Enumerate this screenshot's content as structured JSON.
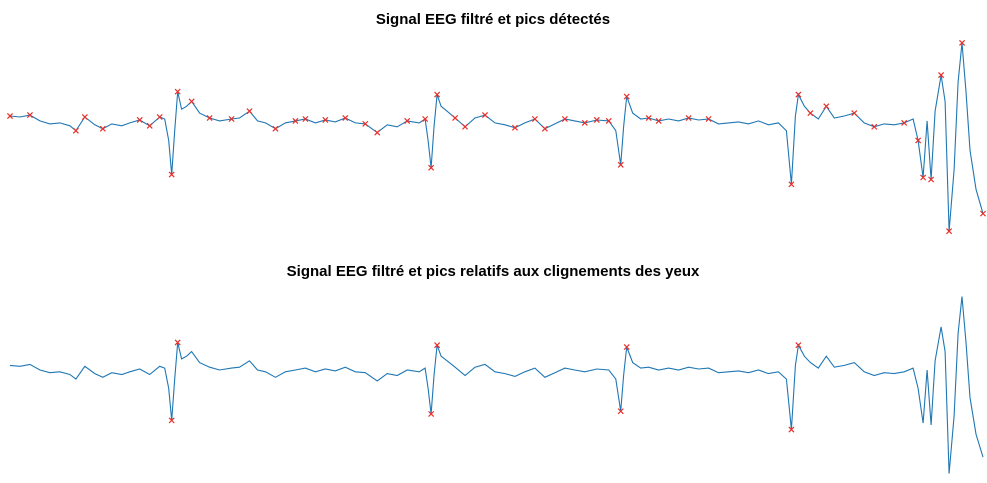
{
  "chart_data": [
    {
      "type": "line",
      "title": "Signal EEG filtré et pics détectés",
      "color": "#1f77b4",
      "xlim": [
        10,
        987
      ],
      "ylim": [
        -120,
        85
      ],
      "x": [
        10,
        20,
        30,
        40,
        50,
        60,
        70,
        76,
        85,
        95,
        103,
        112,
        122,
        130,
        140,
        150,
        160,
        165,
        169,
        172,
        175,
        178,
        182,
        187,
        192,
        200,
        210,
        220,
        232,
        240,
        250,
        258,
        266,
        276,
        286,
        296,
        306,
        316,
        326,
        336,
        346,
        356,
        366,
        378,
        388,
        398,
        408,
        420,
        426,
        429,
        432,
        435,
        438,
        442,
        448,
        456,
        466,
        476,
        486,
        496,
        506,
        516,
        526,
        536,
        546,
        556,
        566,
        576,
        586,
        598,
        610,
        617,
        622,
        625,
        628,
        634,
        642,
        650,
        660,
        670,
        680,
        690,
        700,
        710,
        720,
        730,
        740,
        750,
        760,
        770,
        780,
        788,
        793,
        797,
        800,
        806,
        812,
        820,
        828,
        836,
        846,
        856,
        866,
        876,
        886,
        896,
        906,
        915,
        920,
        925,
        929,
        933,
        937,
        943,
        947,
        951,
        956,
        960,
        964,
        968,
        972,
        978,
        985
      ],
      "values": [
        5,
        4,
        6,
        0,
        -3,
        -2,
        -5,
        -10,
        4,
        -4,
        -8,
        -3,
        -5,
        -2,
        1,
        -5,
        4,
        2,
        -20,
        -55,
        -10,
        30,
        12,
        15,
        20,
        8,
        3,
        0,
        2,
        3,
        10,
        0,
        -2,
        -8,
        -2,
        0,
        2,
        -2,
        1,
        -1,
        3,
        -2,
        -3,
        -12,
        -4,
        -6,
        0,
        -2,
        2,
        -20,
        -48,
        -5,
        27,
        15,
        10,
        3,
        -6,
        3,
        6,
        -2,
        -4,
        -7,
        -2,
        2,
        -8,
        -3,
        2,
        0,
        -2,
        1,
        0,
        -10,
        -45,
        -5,
        25,
        8,
        2,
        3,
        0,
        2,
        0,
        3,
        1,
        2,
        -3,
        -2,
        -1,
        -3,
        0,
        -4,
        -2,
        -10,
        -65,
        5,
        27,
        15,
        8,
        2,
        15,
        3,
        5,
        8,
        -2,
        -6,
        -3,
        -4,
        -2,
        2,
        -20,
        -58,
        0,
        -60,
        10,
        47,
        20,
        -113,
        -50,
        40,
        80,
        30,
        -30,
        -70,
        -95
      ],
      "peaks": {
        "color": "#e8302a",
        "x": [
          10,
          30,
          76,
          85,
          103,
          140,
          150,
          160,
          172,
          178,
          192,
          210,
          232,
          250,
          276,
          296,
          306,
          326,
          346,
          366,
          378,
          408,
          426,
          432,
          438,
          456,
          466,
          486,
          516,
          536,
          546,
          566,
          586,
          598,
          610,
          622,
          628,
          650,
          660,
          690,
          710,
          793,
          800,
          812,
          828,
          856,
          876,
          906,
          920,
          925,
          933,
          943,
          951,
          964,
          985
        ],
        "values": [
          5,
          6,
          -10,
          4,
          -8,
          1,
          -5,
          4,
          -55,
          30,
          20,
          3,
          2,
          10,
          -8,
          0,
          2,
          1,
          3,
          -3,
          -12,
          0,
          2,
          -48,
          27,
          3,
          -6,
          6,
          -7,
          2,
          -8,
          2,
          -2,
          1,
          0,
          -45,
          25,
          3,
          0,
          3,
          2,
          -65,
          27,
          8,
          15,
          8,
          -6,
          -2,
          -20,
          -58,
          -60,
          47,
          -113,
          80,
          -95
        ]
      }
    },
    {
      "type": "line",
      "title": "Signal EEG filtré et pics relatifs aux clignements des yeux",
      "color": "#1f77b4",
      "xlim": [
        10,
        987
      ],
      "ylim": [
        -120,
        85
      ],
      "x": [
        10,
        20,
        30,
        40,
        50,
        60,
        70,
        76,
        85,
        95,
        103,
        112,
        122,
        130,
        140,
        150,
        160,
        165,
        169,
        172,
        175,
        178,
        182,
        187,
        192,
        200,
        210,
        220,
        232,
        240,
        250,
        258,
        266,
        276,
        286,
        296,
        306,
        316,
        326,
        336,
        346,
        356,
        366,
        378,
        388,
        398,
        408,
        420,
        426,
        429,
        432,
        435,
        438,
        442,
        448,
        456,
        466,
        476,
        486,
        496,
        506,
        516,
        526,
        536,
        546,
        556,
        566,
        576,
        586,
        598,
        610,
        617,
        622,
        625,
        628,
        634,
        642,
        650,
        660,
        670,
        680,
        690,
        700,
        710,
        720,
        730,
        740,
        750,
        760,
        770,
        780,
        788,
        793,
        797,
        800,
        806,
        812,
        820,
        828,
        836,
        846,
        856,
        866,
        876,
        886,
        896,
        906,
        915,
        920,
        925,
        929,
        933,
        937,
        943,
        947,
        951,
        956,
        960,
        964,
        968,
        972,
        978,
        985
      ],
      "values": [
        5,
        4,
        6,
        0,
        -3,
        -2,
        -5,
        -10,
        4,
        -4,
        -8,
        -3,
        -5,
        -2,
        1,
        -5,
        4,
        2,
        -20,
        -55,
        -10,
        30,
        12,
        15,
        20,
        8,
        3,
        0,
        2,
        3,
        10,
        0,
        -2,
        -8,
        -2,
        0,
        2,
        -2,
        1,
        -1,
        3,
        -2,
        -3,
        -12,
        -4,
        -6,
        0,
        -2,
        2,
        -20,
        -48,
        -5,
        27,
        15,
        10,
        3,
        -6,
        3,
        6,
        -2,
        -4,
        -7,
        -2,
        2,
        -8,
        -3,
        2,
        0,
        -2,
        1,
        0,
        -10,
        -45,
        -5,
        25,
        8,
        2,
        3,
        0,
        2,
        0,
        3,
        1,
        2,
        -3,
        -2,
        -1,
        -3,
        0,
        -4,
        -2,
        -10,
        -65,
        5,
        27,
        15,
        8,
        2,
        15,
        3,
        5,
        8,
        -2,
        -6,
        -3,
        -4,
        -2,
        2,
        -20,
        -58,
        0,
        -60,
        10,
        47,
        20,
        -113,
        -50,
        40,
        80,
        30,
        -30,
        -70,
        -95
      ],
      "peaks": {
        "color": "#e8302a",
        "x": [
          172,
          178,
          432,
          438,
          622,
          628,
          793,
          800
        ],
        "values": [
          -55,
          30,
          -48,
          27,
          -45,
          25,
          -65,
          27
        ]
      }
    }
  ]
}
